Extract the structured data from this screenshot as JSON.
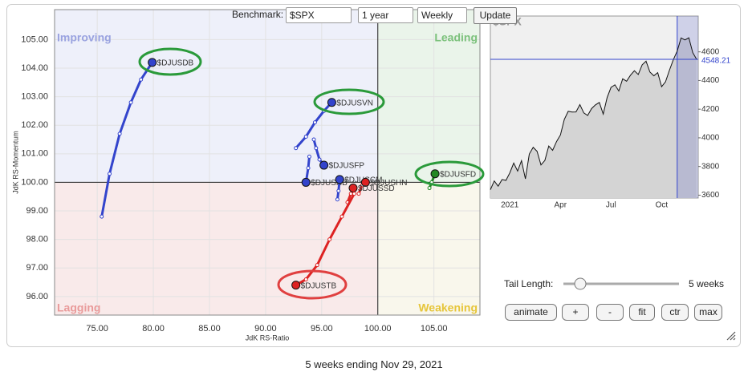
{
  "controls": {
    "benchmark_label": "Benchmark:",
    "benchmark": "$SPX",
    "period": "1 year",
    "frequency": "Weekly",
    "update": "Update",
    "tail_length_label": "Tail Length:",
    "tail_length": "5 weeks",
    "buttons": [
      "animate",
      "+",
      "-",
      "fit",
      "ctr",
      "max"
    ]
  },
  "caption": "5 weeks ending Nov 29, 2021",
  "chart_data": [
    {
      "type": "scatter",
      "x_label": "JdK RS-Ratio",
      "y_label": "JdK RS-Momentum",
      "center": 100,
      "quadrants": [
        {
          "label": "Improving",
          "fill": "#eef0fa",
          "color": "#9aa3e0"
        },
        {
          "label": "Leading",
          "fill": "#eaf4ea",
          "color": "#7cc27c"
        },
        {
          "label": "Lagging",
          "fill": "#f9eaea",
          "color": "#e99a9a"
        },
        {
          "label": "Weakening",
          "fill": "#f9f7ec",
          "color": "#e6c53a"
        }
      ],
      "xlim": [
        71.2,
        109.1
      ],
      "ylim": [
        95.35,
        106.05
      ],
      "grid": true,
      "xticks": [
        {
          "value": 75,
          "label": "75.00"
        },
        {
          "value": 80,
          "label": "80.00"
        },
        {
          "value": 85,
          "label": "85.00"
        },
        {
          "value": 90,
          "label": "90.00"
        },
        {
          "value": 95,
          "label": "95.00"
        },
        {
          "value": 100,
          "label": "100.00"
        },
        {
          "value": 105,
          "label": "105.00"
        }
      ],
      "yticks": [
        {
          "value": 96,
          "label": "96.00"
        },
        {
          "value": 97,
          "label": "97.00"
        },
        {
          "value": 98,
          "label": "98.00"
        },
        {
          "value": 99,
          "label": "99.00"
        },
        {
          "value": 100,
          "label": "100.00"
        },
        {
          "value": 101,
          "label": "101.00"
        },
        {
          "value": 102,
          "label": "102.00"
        },
        {
          "value": 103,
          "label": "103.00"
        },
        {
          "value": 104,
          "label": "104.00"
        },
        {
          "value": 105,
          "label": "105.00"
        }
      ],
      "series": [
        {
          "name": "$DJUSDB",
          "color": "#3344cc",
          "x": [
            75.4,
            76.1,
            77.0,
            78.0,
            78.9,
            79.9
          ],
          "y": [
            98.8,
            100.3,
            101.7,
            102.8,
            103.6,
            104.2
          ]
        },
        {
          "name": "$DJUSVN",
          "color": "#3344cc",
          "x": [
            92.7,
            93.6,
            94.4,
            95.2,
            95.9
          ],
          "y": [
            101.2,
            101.6,
            102.1,
            102.5,
            102.8
          ]
        },
        {
          "name": "$DJUSFP",
          "color": "#3344cc",
          "x": [
            94.3,
            94.5,
            94.8,
            95.2
          ],
          "y": [
            101.5,
            101.2,
            100.8,
            100.6
          ]
        },
        {
          "name": "$DJUSHB",
          "color": "#3344cc",
          "x": [
            93.9,
            93.8,
            93.6
          ],
          "y": [
            100.9,
            100.5,
            100.0
          ]
        },
        {
          "name": "$DJUSCM",
          "color": "#3344cc",
          "x": [
            96.4,
            96.5,
            96.6
          ],
          "y": [
            99.4,
            99.7,
            100.1
          ]
        },
        {
          "name": "$DJUSHN",
          "color": "#dd2222",
          "x": [
            98.3,
            98.6,
            98.9
          ],
          "y": [
            99.6,
            99.9,
            100.0
          ]
        },
        {
          "name": "$DJUSSD",
          "color": "#dd2222",
          "x": [
            97.3,
            97.6,
            97.8
          ],
          "y": [
            99.3,
            99.6,
            99.8
          ]
        },
        {
          "name": "$DJUSTB",
          "color": "#dd2222",
          "x": [
            97.9,
            96.8,
            95.7,
            94.6,
            93.6,
            92.7
          ],
          "y": [
            99.6,
            98.8,
            98.0,
            97.1,
            96.6,
            96.4
          ]
        },
        {
          "name": "$DJUSFD",
          "color": "#228822",
          "x": [
            104.6,
            104.8,
            105.1
          ],
          "y": [
            99.8,
            100.0,
            100.3
          ]
        }
      ]
    },
    {
      "type": "line",
      "title": "$SPX",
      "color": "#111111",
      "categories": [
        null,
        null,
        null,
        null,
        null,
        "2021",
        null,
        null,
        null,
        null,
        null,
        null,
        null,
        null,
        null,
        null,
        null,
        null,
        "Apr",
        null,
        null,
        null,
        null,
        null,
        null,
        null,
        null,
        null,
        null,
        null,
        null,
        "Jul",
        null,
        null,
        null,
        null,
        null,
        null,
        null,
        null,
        null,
        null,
        null,
        null,
        "Oct",
        null,
        null,
        null,
        null,
        null,
        null,
        null,
        null,
        null
      ],
      "values": [
        3638,
        3699,
        3663,
        3709,
        3703,
        3756,
        3824,
        3768,
        3841,
        3714,
        3887,
        3934,
        3906,
        3811,
        3842,
        3943,
        3913,
        3974,
        4020,
        4129,
        4185,
        4180,
        4181,
        4232,
        4174,
        4156,
        4204,
        4230,
        4247,
        4166,
        4281,
        4352,
        4370,
        4327,
        4412,
        4395,
        4437,
        4468,
        4442,
        4509,
        4535,
        4459,
        4433,
        4455,
        4357,
        4391,
        4471,
        4545,
        4605,
        4697,
        4683,
        4698,
        4595,
        4548.21
      ],
      "last_value": 4548.21,
      "ylim": [
        3580,
        4850
      ],
      "yticks": [
        3600,
        3800,
        4000,
        4200,
        4400,
        4600
      ]
    }
  ]
}
